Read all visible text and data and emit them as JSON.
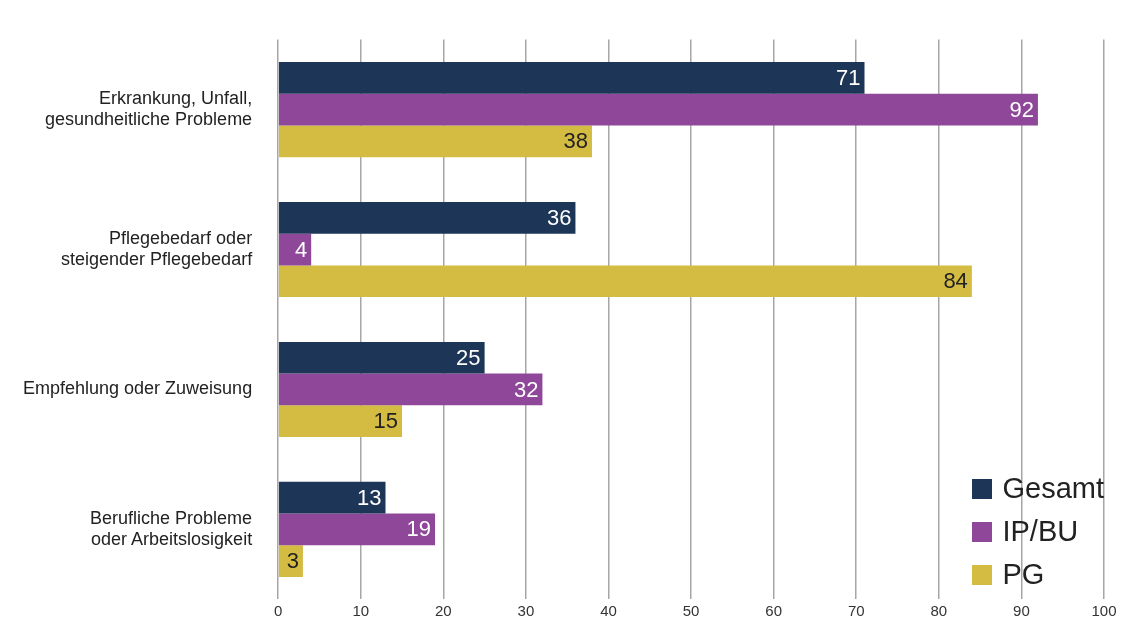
{
  "chart_data": {
    "type": "bar",
    "orientation": "horizontal",
    "categories": [
      "Erkrankung, Unfall,\ngesundheitliche Probleme",
      "Pflegebedarf oder\nsteigender Pflegebedarf",
      "Empfehlung oder Zuweisung",
      "Berufliche Probleme\noder Arbeitslosigkeit"
    ],
    "series": [
      {
        "name": "Gesamt",
        "color": "#1d3557",
        "values": [
          71,
          36,
          25,
          13
        ]
      },
      {
        "name": "IP/BU",
        "color": "#8e4799",
        "values": [
          92,
          4,
          32,
          19
        ]
      },
      {
        "name": "PG",
        "color": "#d4bb42",
        "values": [
          38,
          84,
          15,
          3
        ]
      }
    ],
    "xlim": [
      0,
      100
    ],
    "xticks": [
      0,
      10,
      20,
      30,
      40,
      50,
      60,
      70,
      80,
      90,
      100
    ],
    "grid": "x",
    "legend": "bottom right",
    "data_labels": true
  }
}
